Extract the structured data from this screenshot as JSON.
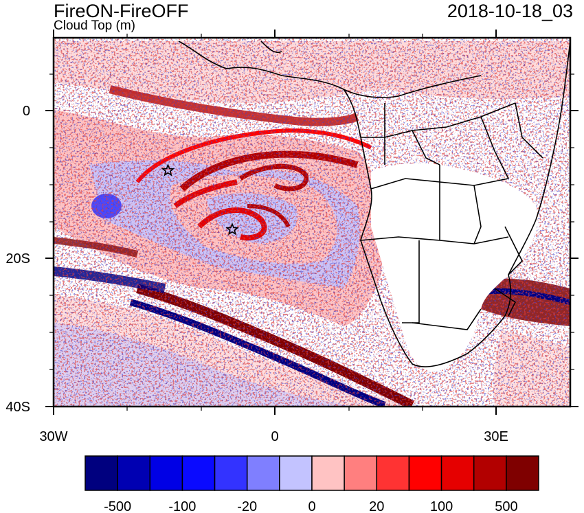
{
  "header": {
    "title": "FireON-FireOFF",
    "subtitle": "Cloud Top (m)",
    "datetime": "2018-10-18_03"
  },
  "axes": {
    "lon_labels": [
      "30W",
      "0",
      "30E"
    ],
    "lat_labels": [
      "0",
      "20S",
      "40S"
    ]
  },
  "markers": {
    "stars": [
      {
        "lon": -14.5,
        "lat": -8
      },
      {
        "lon": -5.8,
        "lat": -16
      }
    ]
  },
  "colorbar": {
    "labels": [
      "-500",
      "-100",
      "-20",
      "0",
      "20",
      "100",
      "500"
    ],
    "colors": [
      "#00007f",
      "#0000b2",
      "#0000e5",
      "#0a0aff",
      "#3333ff",
      "#7f7fff",
      "#c3c3ff",
      "#ffc3c3",
      "#ff7f7f",
      "#ff3333",
      "#ff0000",
      "#e50000",
      "#b20000",
      "#7f0000"
    ]
  },
  "chart_data": {
    "type": "heatmap",
    "title": "FireON-FireOFF",
    "subtitle": "Cloud Top (m)",
    "xlim": [
      -30,
      40
    ],
    "ylim": [
      -40,
      10
    ],
    "xticks": [
      -30,
      0,
      30
    ],
    "yticks": [
      0,
      -20,
      -40
    ],
    "legend": "colorbar-bottom"
  }
}
